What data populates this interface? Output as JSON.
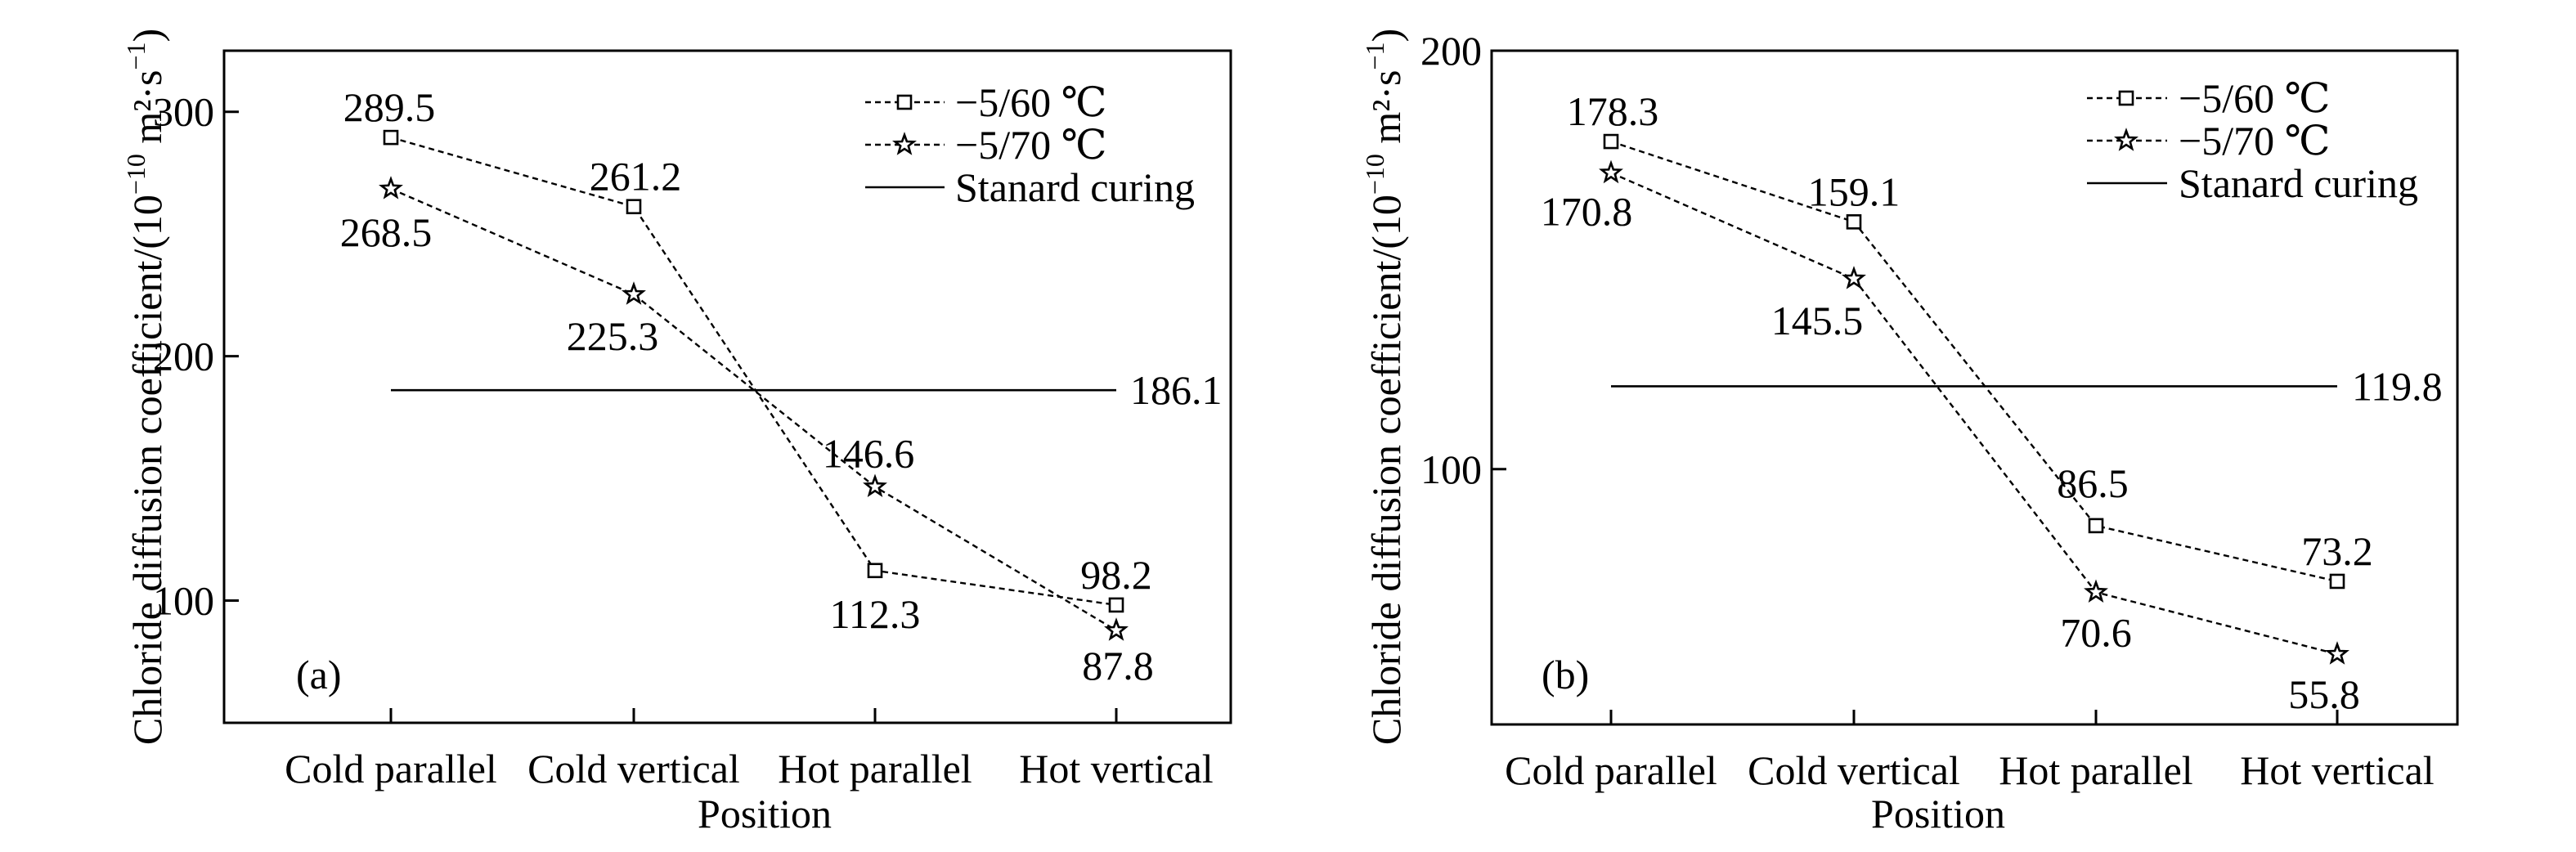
{
  "chart_data": [
    {
      "type": "line",
      "panel_label": "(a)",
      "xlabel": "Position",
      "ylabel_main": "Chloride diffusion coefficient/(10",
      "ylabel_exp": "−10",
      "ylabel_unit": " m²·s",
      "ylabel_unit_exp": "−1",
      "ylabel_close": ")",
      "categories": [
        "Cold parallel",
        "Cold vertical",
        "Hot parallel",
        "Hot vertical"
      ],
      "ylim": [
        50,
        325
      ],
      "yticks": [
        100,
        200,
        300
      ],
      "series": [
        {
          "name": "−5/60 ℃",
          "marker": "square",
          "values": [
            289.5,
            261.2,
            112.3,
            98.2
          ],
          "labels": [
            "289.5",
            "261.2",
            "112.3",
            "98.2"
          ]
        },
        {
          "name": "−5/70 ℃",
          "marker": "star",
          "values": [
            268.5,
            225.3,
            146.6,
            87.8
          ],
          "labels": [
            "268.5",
            "225.3",
            "146.6",
            "87.8"
          ]
        }
      ],
      "reference": {
        "name": "Stanard curing",
        "value": 186.1,
        "label": "186.1"
      },
      "legend": "top-right"
    },
    {
      "type": "line",
      "panel_label": "(b)",
      "xlabel": "Position",
      "ylabel_main": "Chloride diffusion coefficient/(10",
      "ylabel_exp": "−10",
      "ylabel_unit": " m²·s",
      "ylabel_unit_exp": "−1",
      "ylabel_close": ")",
      "categories": [
        "Cold parallel",
        "Cold vertical",
        "Hot parallel",
        "Hot vertical"
      ],
      "ylim": [
        39,
        200
      ],
      "yticks": [
        100,
        200
      ],
      "series": [
        {
          "name": "−5/60 ℃",
          "marker": "square",
          "values": [
            178.3,
            159.1,
            86.5,
            73.2
          ],
          "labels": [
            "178.3",
            "159.1",
            "86.5",
            "73.2"
          ]
        },
        {
          "name": "−5/70 ℃",
          "marker": "star",
          "values": [
            170.8,
            145.5,
            70.6,
            55.8
          ],
          "labels": [
            "170.8",
            "145.5",
            "70.6",
            "55.8"
          ]
        }
      ],
      "reference": {
        "name": "Stanard curing",
        "value": 119.8,
        "label": "119.8"
      },
      "legend": "top-right"
    }
  ]
}
